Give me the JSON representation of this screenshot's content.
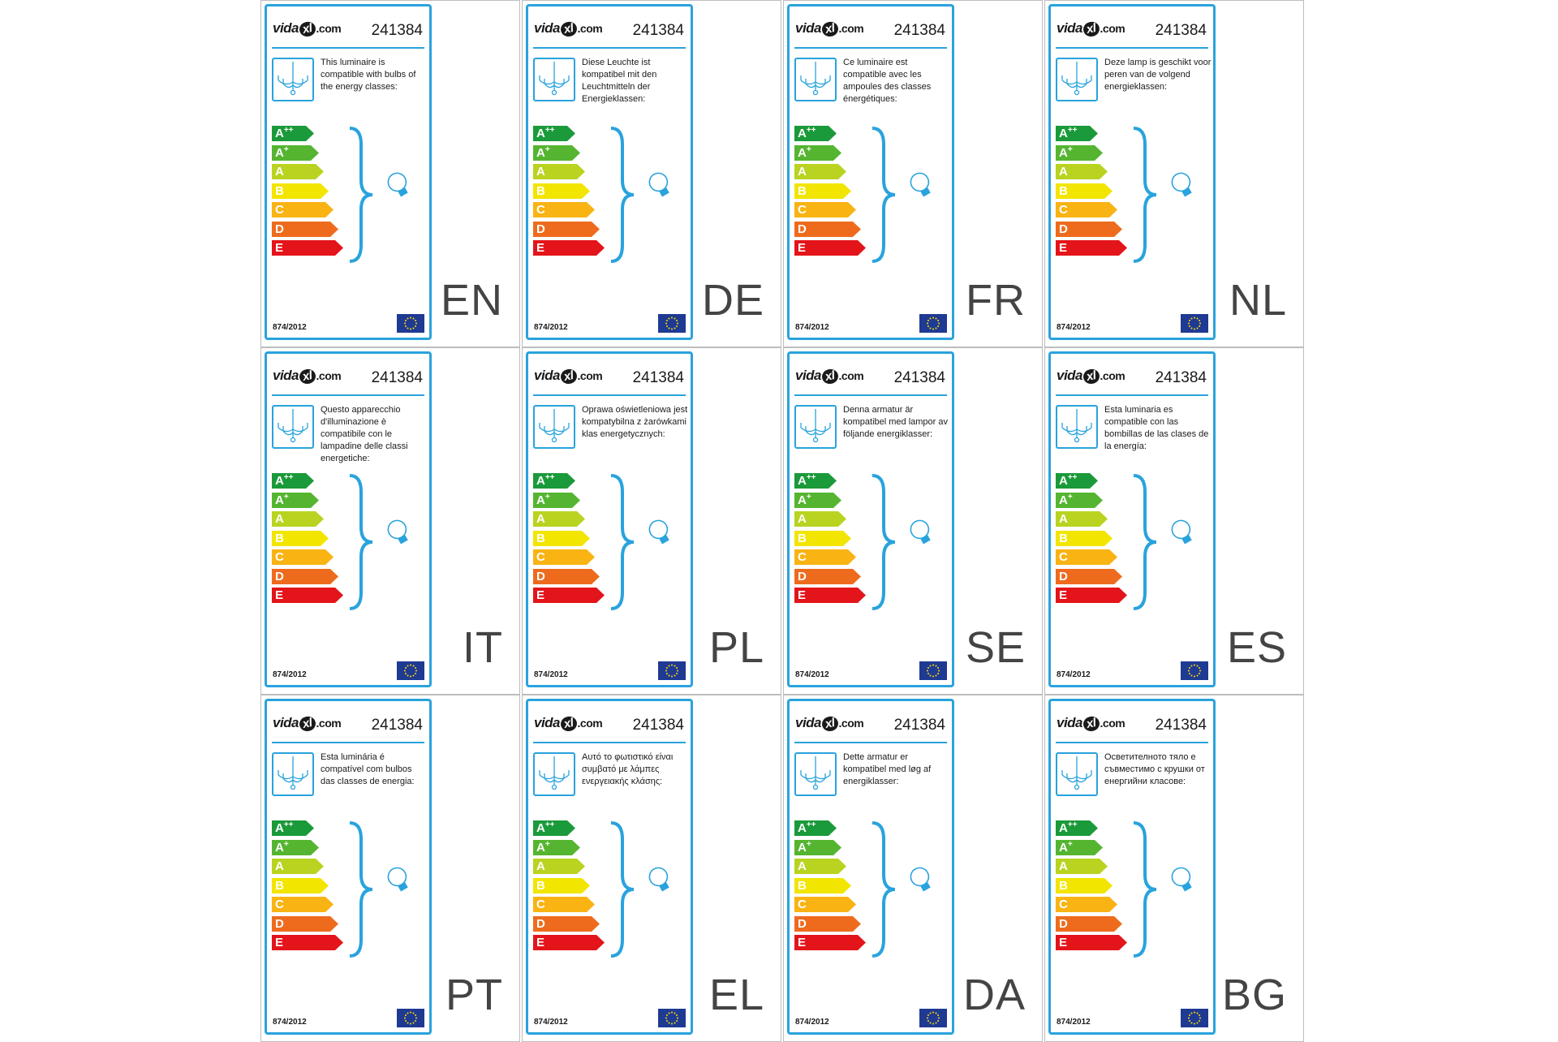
{
  "article_number": "241384",
  "brand": {
    "pre": "vida",
    "mark": "xl",
    "post": ".com"
  },
  "regulation": "874/2012",
  "energy_classes": [
    {
      "base": "A",
      "sup": "++",
      "color": "#1a9a3a"
    },
    {
      "base": "A",
      "sup": "+",
      "color": "#55b530"
    },
    {
      "base": "A",
      "sup": "",
      "color": "#b9d320"
    },
    {
      "base": "B",
      "sup": "",
      "color": "#f2e500"
    },
    {
      "base": "C",
      "sup": "",
      "color": "#f9b313"
    },
    {
      "base": "D",
      "sup": "",
      "color": "#ee6b1d"
    },
    {
      "base": "E",
      "sup": "",
      "color": "#e3141a"
    }
  ],
  "accent_color": "#29a3dd",
  "labels": [
    {
      "lang": "EN",
      "text": "This luminaire is compatible with bulbs of the energy classes:"
    },
    {
      "lang": "DE",
      "text": "Diese Leuchte ist kompatibel mit den Leuchtmitteln der Energieklassen:"
    },
    {
      "lang": "FR",
      "text": "Ce luminaire est compatible avec les ampoules des classes énergétiques:"
    },
    {
      "lang": "NL",
      "text": "Deze lamp is geschikt voor peren van de volgend energieklassen:"
    },
    {
      "lang": "IT",
      "text": "Questo apparecchio d'illuminazione è compatibile con le lampadine delle classi energetiche:"
    },
    {
      "lang": "PL",
      "text": "Oprawa oświetleniowa jest kompatybilna z żarówkami klas energetycznych:"
    },
    {
      "lang": "SE",
      "text": "Denna armatur är kompatibel med lampor av följande energiklasser:"
    },
    {
      "lang": "ES",
      "text": "Esta luminaria es compatible con las bombillas de las clases de la energía:"
    },
    {
      "lang": "PT",
      "text": "Esta luminária é compatível com bulbos das classes de energia:"
    },
    {
      "lang": "EL",
      "text": "Αυτό το φωτιστικό είναι συμβατό με λάμπες ενεργειακής κλάσης:"
    },
    {
      "lang": "DA",
      "text": "Dette armatur er kompatibel med løg af energiklasser:"
    },
    {
      "lang": "BG",
      "text": "Осветителното тяло е съвместимо с крушки от енергийни класове:"
    }
  ]
}
